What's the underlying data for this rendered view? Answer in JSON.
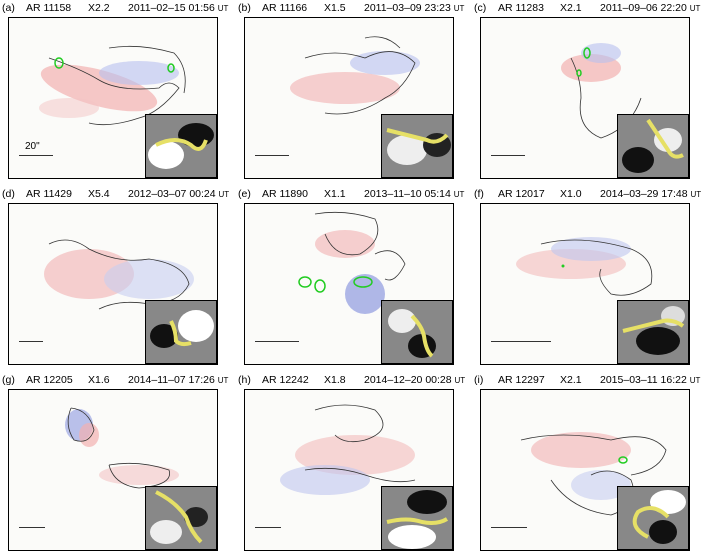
{
  "panels": [
    {
      "label": "(a)",
      "ar": "AR 11158",
      "cls": "X2.2",
      "date": "2011–02–15 01:56",
      "ut": "UT",
      "scale": "20\""
    },
    {
      "label": "(b)",
      "ar": "AR 11166",
      "cls": "X1.5",
      "date": "2011–03–09 23:23",
      "ut": "UT"
    },
    {
      "label": "(c)",
      "ar": "AR 11283",
      "cls": "X2.1",
      "date": "2011–09–06 22:20",
      "ut": "UT"
    },
    {
      "label": "(d)",
      "ar": "AR 11429",
      "cls": "X5.4",
      "date": "2012–03–07 00:24",
      "ut": "UT"
    },
    {
      "label": "(e)",
      "ar": "AR 11890",
      "cls": "X1.1",
      "date": "2013–11–10 05:14",
      "ut": "UT"
    },
    {
      "label": "(f)",
      "ar": "AR 12017",
      "cls": "X1.0",
      "date": "2014–03–29 17:48",
      "ut": "UT"
    },
    {
      "label": "(g)",
      "ar": "AR 12205",
      "cls": "X1.6",
      "date": "2014–11–07 17:26",
      "ut": "UT"
    },
    {
      "label": "(h)",
      "ar": "AR 12242",
      "cls": "X1.8",
      "date": "2014–12–20 00:28",
      "ut": "UT"
    },
    {
      "label": "(i)",
      "ar": "AR 12297",
      "cls": "X2.1",
      "date": "2015–03–11 16:22",
      "ut": "UT"
    }
  ],
  "colors": {
    "positive": "#e06060",
    "negative": "#6f7fd8",
    "contour": "#333333",
    "green": "#22cc22",
    "ribbon": "#e6e066"
  }
}
